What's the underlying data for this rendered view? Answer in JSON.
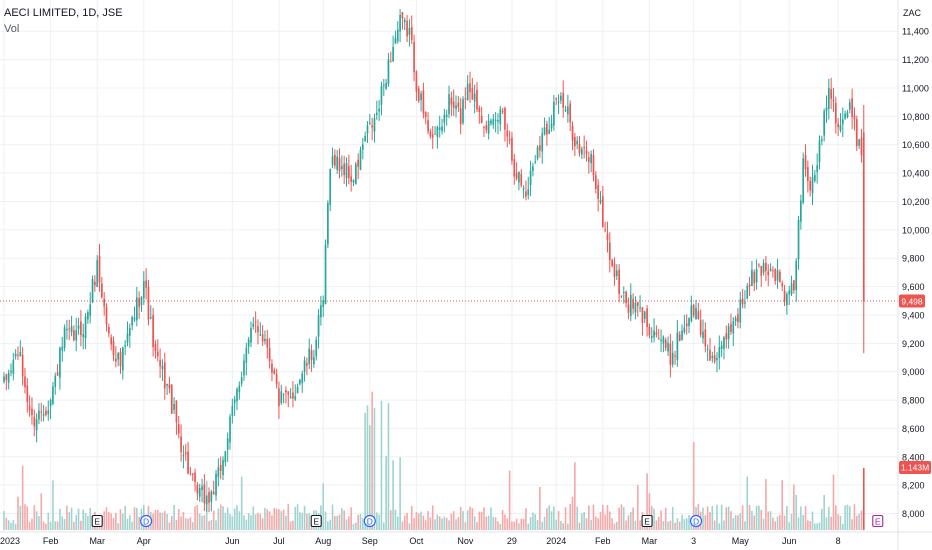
{
  "legend": {
    "symbol_line": "AECI LIMITED, 1D, JSE",
    "volume_label": "Vol"
  },
  "colors": {
    "up": "#26a69a",
    "down": "#ef5350",
    "up_volume": "#9fd3cf",
    "down_volume": "#f5a8a7",
    "grid": "#eef0f3",
    "axis_text": "#131722",
    "price_line": "#ef5350",
    "event_earnings": "#131722",
    "event_dividend": "#2962ff",
    "event_split": "#9c27b0"
  },
  "chart_data": {
    "type": "candlestick",
    "currency": "ZAC",
    "y_ticks": [
      8000,
      8200,
      8400,
      8600,
      8800,
      9000,
      9200,
      9400,
      9600,
      9800,
      10000,
      10200,
      10400,
      10600,
      10800,
      11000,
      11200,
      11400
    ],
    "ylim": [
      7870,
      11620
    ],
    "x_tick_labels": [
      "2023",
      "Feb",
      "Mar",
      "Apr",
      "Jun",
      "Jul",
      "Aug",
      "Sep",
      "Oct",
      "Nov",
      "29",
      "2024",
      "Feb",
      "Mar",
      "3",
      "May",
      "Jun",
      "8"
    ],
    "x_tick_index": [
      0,
      20,
      40,
      60,
      98,
      118,
      137,
      157,
      177,
      198,
      218,
      237,
      257,
      277,
      296,
      316,
      337,
      358
    ],
    "grid": true,
    "last_price": 9498,
    "last_price_label": "9,498",
    "last_volume_label": "1.143M",
    "events": [
      {
        "type": "E",
        "label": "E",
        "index": 40
      },
      {
        "type": "D",
        "label": "D",
        "index": 61
      },
      {
        "type": "E",
        "label": "E",
        "index": 134
      },
      {
        "type": "D",
        "label": "D",
        "index": 157
      },
      {
        "type": "E",
        "label": "E",
        "index": 276
      },
      {
        "type": "D",
        "label": "D",
        "index": 297
      },
      {
        "type": "S",
        "label": "E",
        "index": 375
      }
    ],
    "anchors": [
      [
        0,
        8900
      ],
      [
        6,
        9150
      ],
      [
        12,
        8650
      ],
      [
        20,
        8800
      ],
      [
        26,
        9250
      ],
      [
        31,
        9250
      ],
      [
        35,
        9350
      ],
      [
        40,
        9750
      ],
      [
        45,
        9250
      ],
      [
        50,
        9050
      ],
      [
        55,
        9350
      ],
      [
        60,
        9650
      ],
      [
        65,
        9100
      ],
      [
        70,
        8900
      ],
      [
        76,
        8500
      ],
      [
        82,
        8150
      ],
      [
        88,
        8100
      ],
      [
        92,
        8250
      ],
      [
        98,
        8700
      ],
      [
        103,
        9100
      ],
      [
        108,
        9350
      ],
      [
        113,
        9200
      ],
      [
        118,
        8800
      ],
      [
        123,
        8800
      ],
      [
        128,
        9000
      ],
      [
        133,
        9150
      ],
      [
        137,
        9500
      ],
      [
        140,
        10500
      ],
      [
        145,
        10450
      ],
      [
        150,
        10350
      ],
      [
        155,
        10650
      ],
      [
        160,
        10800
      ],
      [
        164,
        11100
      ],
      [
        167,
        11300
      ],
      [
        170,
        11450
      ],
      [
        174,
        11400
      ],
      [
        177,
        11050
      ],
      [
        181,
        10750
      ],
      [
        186,
        10650
      ],
      [
        191,
        10900
      ],
      [
        196,
        10800
      ],
      [
        199,
        11050
      ],
      [
        204,
        10850
      ],
      [
        209,
        10700
      ],
      [
        214,
        10850
      ],
      [
        219,
        10450
      ],
      [
        224,
        10250
      ],
      [
        229,
        10600
      ],
      [
        234,
        10750
      ],
      [
        237,
        10950
      ],
      [
        242,
        10800
      ],
      [
        247,
        10550
      ],
      [
        252,
        10500
      ],
      [
        256,
        10150
      ],
      [
        261,
        9750
      ],
      [
        266,
        9500
      ],
      [
        271,
        9450
      ],
      [
        276,
        9350
      ],
      [
        281,
        9250
      ],
      [
        286,
        9100
      ],
      [
        291,
        9300
      ],
      [
        296,
        9450
      ],
      [
        301,
        9200
      ],
      [
        306,
        9050
      ],
      [
        311,
        9300
      ],
      [
        316,
        9450
      ],
      [
        321,
        9650
      ],
      [
        326,
        9750
      ],
      [
        331,
        9700
      ],
      [
        336,
        9500
      ],
      [
        339,
        9600
      ],
      [
        343,
        10450
      ],
      [
        347,
        10300
      ],
      [
        351,
        10700
      ],
      [
        354,
        11050
      ],
      [
        358,
        10750
      ],
      [
        363,
        10850
      ],
      [
        366,
        10650
      ],
      [
        368,
        10600
      ],
      [
        369,
        9498
      ]
    ]
  }
}
